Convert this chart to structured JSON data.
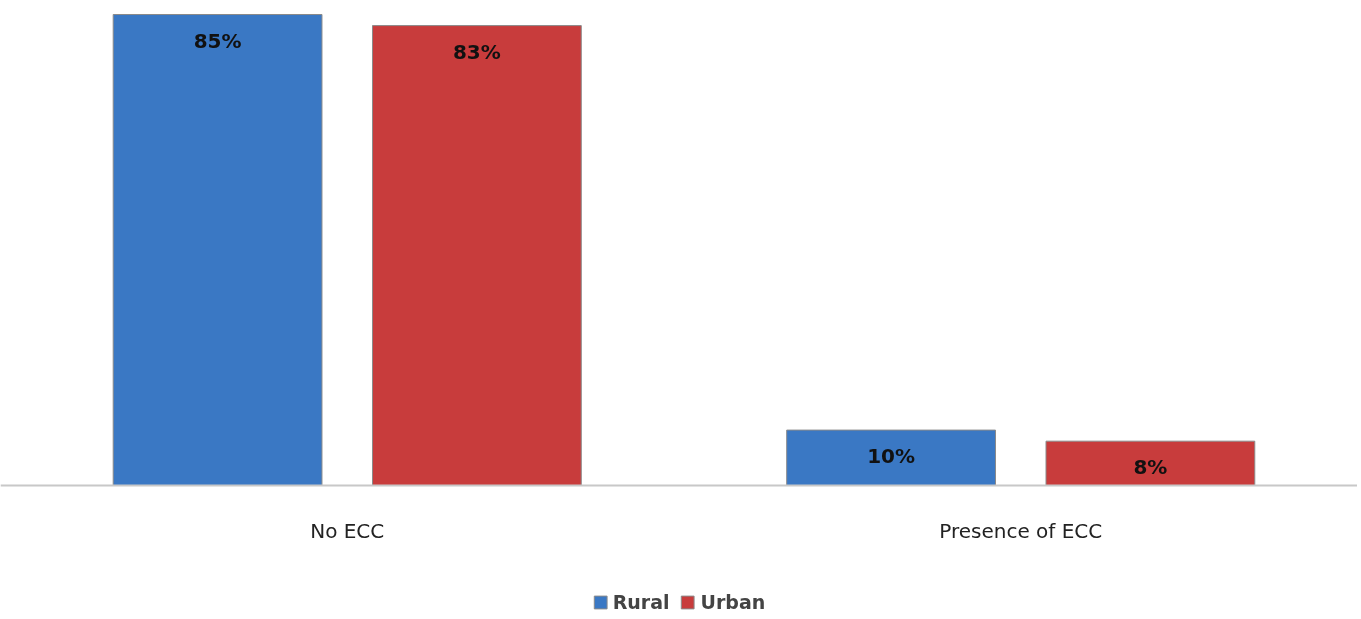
{
  "chart_data": {
    "type": "bar",
    "categories": [
      "No ECC",
      "Presence of ECC"
    ],
    "series": [
      {
        "name": "Rural",
        "color": "#3a78c4",
        "values": [
          85,
          10
        ],
        "value_labels": [
          "85%",
          "10%"
        ]
      },
      {
        "name": "Urban",
        "color": "#c83c3c",
        "values": [
          83,
          8
        ],
        "value_labels": [
          "83%",
          "8%"
        ]
      }
    ],
    "legend": "bottom",
    "grid": false
  }
}
